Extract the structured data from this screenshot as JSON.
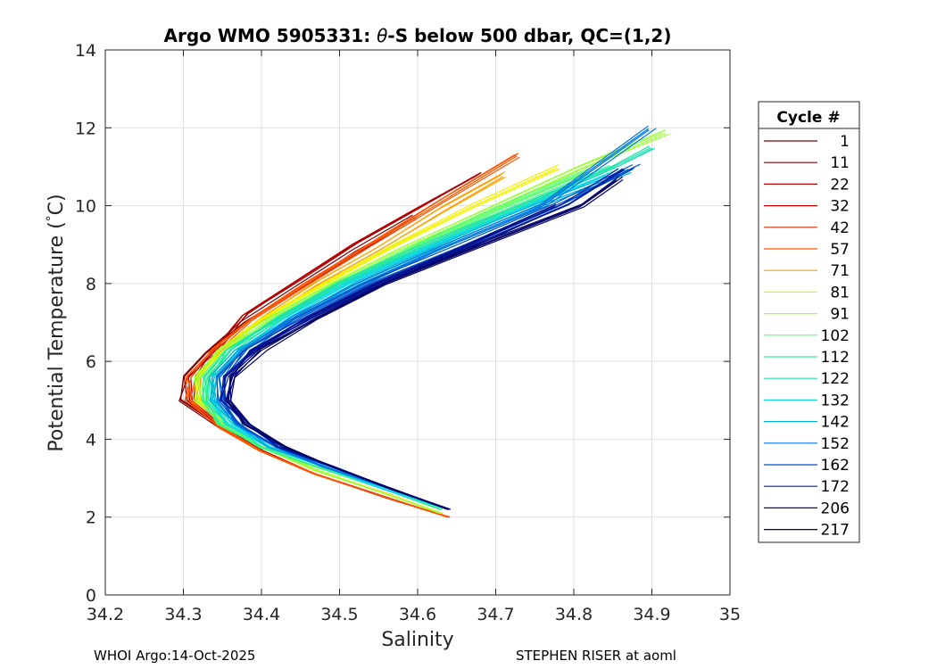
{
  "chart_data": {
    "type": "line",
    "title_prefix": "Argo WMO 5905331: ",
    "title_symbol": "θ",
    "title_suffix": "-S below 500 dbar,  QC=(1,2)",
    "xlabel": "Salinity",
    "ylabel_prefix": "Potential Temperature (",
    "ylabel_deg": "°",
    "ylabel_unit": "C)",
    "xlim": [
      34.2,
      35.0
    ],
    "ylim": [
      0,
      14
    ],
    "xticks": [
      34.2,
      34.3,
      34.4,
      34.5,
      34.6,
      34.7,
      34.8,
      34.9,
      35.0
    ],
    "xtick_labels": [
      "34.2",
      "34.3",
      "34.4",
      "34.5",
      "34.6",
      "34.7",
      "34.8",
      "34.9",
      "35"
    ],
    "yticks": [
      0,
      2,
      4,
      6,
      8,
      10,
      12,
      14
    ],
    "ytick_labels": [
      "0",
      "2",
      "4",
      "6",
      "8",
      "10",
      "12",
      "14"
    ],
    "grid": true,
    "legend": {
      "title": "Cycle #",
      "placement": "right",
      "entries": [
        {
          "label": "1",
          "color": "#800000"
        },
        {
          "label": "11",
          "color": "#990000"
        },
        {
          "label": "22",
          "color": "#b30000"
        },
        {
          "label": "32",
          "color": "#cc0000"
        },
        {
          "label": "42",
          "color": "#e62e00"
        },
        {
          "label": "57",
          "color": "#ff5500"
        },
        {
          "label": "71",
          "color": "#ffa000"
        },
        {
          "label": "81",
          "color": "#f2f200"
        },
        {
          "label": "91",
          "color": "#9cff3c"
        },
        {
          "label": "102",
          "color": "#5aff6e"
        },
        {
          "label": "112",
          "color": "#30f090"
        },
        {
          "label": "122",
          "color": "#20e0b0"
        },
        {
          "label": "132",
          "color": "#10d8e8"
        },
        {
          "label": "142",
          "color": "#00b0d8"
        },
        {
          "label": "152",
          "color": "#0078e0"
        },
        {
          "label": "162",
          "color": "#0050c8"
        },
        {
          "label": "172",
          "color": "#0020a8"
        },
        {
          "label": "206",
          "color": "#00108c"
        },
        {
          "label": "217",
          "color": "#000066"
        }
      ]
    },
    "series_profiles": [
      {
        "color": "#800000",
        "s": [
          34.64,
          34.56,
          34.47,
          34.4,
          34.35,
          34.3,
          34.3,
          34.33,
          34.38,
          34.45,
          34.52,
          34.6
        ],
        "t": [
          2.0,
          2.5,
          3.1,
          3.7,
          4.3,
          5.0,
          5.6,
          6.2,
          7.0,
          7.9,
          8.8,
          9.7
        ]
      },
      {
        "color": "#b30000",
        "s": [
          34.64,
          34.56,
          34.47,
          34.4,
          34.35,
          34.31,
          34.31,
          34.34,
          34.38,
          34.45,
          34.52,
          34.6,
          34.68
        ],
        "t": [
          2.0,
          2.5,
          3.1,
          3.7,
          4.3,
          5.0,
          5.6,
          6.3,
          7.2,
          8.1,
          9.0,
          9.9,
          10.8
        ]
      },
      {
        "color": "#ff5500",
        "s": [
          34.64,
          34.56,
          34.47,
          34.4,
          34.35,
          34.31,
          34.31,
          34.34,
          34.39,
          34.46,
          34.54,
          34.63,
          34.73
        ],
        "t": [
          2.0,
          2.5,
          3.1,
          3.7,
          4.3,
          5.0,
          5.6,
          6.3,
          7.1,
          8.0,
          9.0,
          10.1,
          11.3
        ]
      },
      {
        "color": "#ffa000",
        "s": [
          34.63,
          34.56,
          34.47,
          34.4,
          34.35,
          34.32,
          34.32,
          34.35,
          34.4,
          34.47,
          34.55,
          34.63,
          34.71
        ],
        "t": [
          2.1,
          2.6,
          3.2,
          3.8,
          4.4,
          5.0,
          5.6,
          6.3,
          7.1,
          8.0,
          8.9,
          9.9,
          10.8
        ]
      },
      {
        "color": "#f2f200",
        "s": [
          34.63,
          34.56,
          34.47,
          34.4,
          34.35,
          34.32,
          34.32,
          34.35,
          34.4,
          34.48,
          34.57,
          34.67,
          34.78
        ],
        "t": [
          2.1,
          2.6,
          3.2,
          3.8,
          4.4,
          5.0,
          5.6,
          6.3,
          7.1,
          8.0,
          9.0,
          10.0,
          11.0
        ]
      },
      {
        "color": "#9cff3c",
        "s": [
          34.63,
          34.56,
          34.47,
          34.4,
          34.35,
          34.32,
          34.32,
          34.35,
          34.41,
          34.49,
          34.58,
          34.69,
          34.81,
          34.92
        ],
        "t": [
          2.1,
          2.6,
          3.2,
          3.8,
          4.4,
          5.0,
          5.6,
          6.3,
          7.1,
          8.0,
          8.9,
          9.9,
          11.0,
          11.9
        ]
      },
      {
        "color": "#5aff6e",
        "s": [
          34.63,
          34.56,
          34.47,
          34.4,
          34.35,
          34.33,
          34.33,
          34.36,
          34.42,
          34.5,
          34.59,
          34.7,
          34.82
        ],
        "t": [
          2.2,
          2.7,
          3.3,
          3.8,
          4.4,
          5.0,
          5.6,
          6.3,
          7.1,
          8.0,
          8.9,
          9.9,
          10.9
        ]
      },
      {
        "color": "#30f090",
        "s": [
          34.63,
          34.56,
          34.47,
          34.4,
          34.35,
          34.33,
          34.33,
          34.36,
          34.42,
          34.5,
          34.6,
          34.72,
          34.85
        ],
        "t": [
          2.2,
          2.7,
          3.3,
          3.8,
          4.4,
          5.0,
          5.6,
          6.3,
          7.1,
          8.0,
          8.9,
          9.9,
          11.0
        ]
      },
      {
        "color": "#20e0b0",
        "s": [
          34.64,
          34.56,
          34.48,
          34.41,
          34.36,
          34.33,
          34.33,
          34.36,
          34.42,
          34.5,
          34.6,
          34.72,
          34.85,
          34.9
        ],
        "t": [
          2.2,
          2.7,
          3.3,
          3.8,
          4.4,
          5.0,
          5.6,
          6.3,
          7.1,
          8.0,
          8.9,
          9.9,
          11.0,
          11.5
        ]
      },
      {
        "color": "#10d8e8",
        "s": [
          34.64,
          34.56,
          34.48,
          34.41,
          34.36,
          34.34,
          34.34,
          34.37,
          34.43,
          34.51,
          34.61,
          34.73,
          34.84
        ],
        "t": [
          2.2,
          2.7,
          3.3,
          3.8,
          4.4,
          5.0,
          5.6,
          6.3,
          7.1,
          8.0,
          8.9,
          9.9,
          10.8
        ]
      },
      {
        "color": "#00b0d8",
        "s": [
          34.64,
          34.57,
          34.48,
          34.41,
          34.37,
          34.34,
          34.34,
          34.37,
          34.44,
          34.52,
          34.62,
          34.74,
          34.87
        ],
        "t": [
          2.2,
          2.7,
          3.3,
          3.8,
          4.4,
          5.0,
          5.6,
          6.3,
          7.1,
          8.0,
          8.9,
          9.9,
          10.9
        ]
      },
      {
        "color": "#0078e0",
        "s": [
          34.64,
          34.57,
          34.48,
          34.42,
          34.37,
          34.35,
          34.35,
          34.38,
          34.44,
          34.53,
          34.63,
          34.76,
          34.9
        ],
        "t": [
          2.2,
          2.7,
          3.3,
          3.8,
          4.4,
          5.0,
          5.6,
          6.3,
          7.1,
          8.0,
          8.9,
          10.0,
          12.0
        ]
      },
      {
        "color": "#0050c8",
        "s": [
          34.64,
          34.57,
          34.49,
          34.42,
          34.37,
          34.35,
          34.35,
          34.38,
          34.45,
          34.54,
          34.65,
          34.78,
          34.88
        ],
        "t": [
          2.2,
          2.7,
          3.3,
          3.8,
          4.4,
          5.0,
          5.6,
          6.3,
          7.1,
          8.0,
          8.9,
          10.0,
          11.0
        ]
      },
      {
        "color": "#0020a8",
        "s": [
          34.64,
          34.57,
          34.49,
          34.42,
          34.38,
          34.35,
          34.35,
          34.39,
          34.46,
          34.55,
          34.66,
          34.79,
          34.86
        ],
        "t": [
          2.2,
          2.7,
          3.3,
          3.8,
          4.4,
          5.0,
          5.6,
          6.3,
          7.1,
          8.0,
          8.9,
          10.0,
          10.9
        ]
      },
      {
        "color": "#00108c",
        "s": [
          34.64,
          34.57,
          34.49,
          34.43,
          34.38,
          34.36,
          34.36,
          34.39,
          34.46,
          34.55,
          34.66,
          34.78
        ],
        "t": [
          2.2,
          2.7,
          3.3,
          3.8,
          4.4,
          5.0,
          5.6,
          6.3,
          7.1,
          8.0,
          8.9,
          10.0
        ]
      },
      {
        "color": "#000066",
        "s": [
          34.64,
          34.57,
          34.49,
          34.43,
          34.38,
          34.36,
          34.36,
          34.4,
          34.47,
          34.56,
          34.67,
          34.81,
          34.86
        ],
        "t": [
          2.2,
          2.7,
          3.3,
          3.8,
          4.4,
          5.0,
          5.6,
          6.3,
          7.1,
          8.0,
          8.9,
          10.0,
          10.7
        ]
      }
    ]
  },
  "footer": {
    "left": "WHOI Argo:14-Oct-2025",
    "right": "STEPHEN RISER at aoml"
  }
}
